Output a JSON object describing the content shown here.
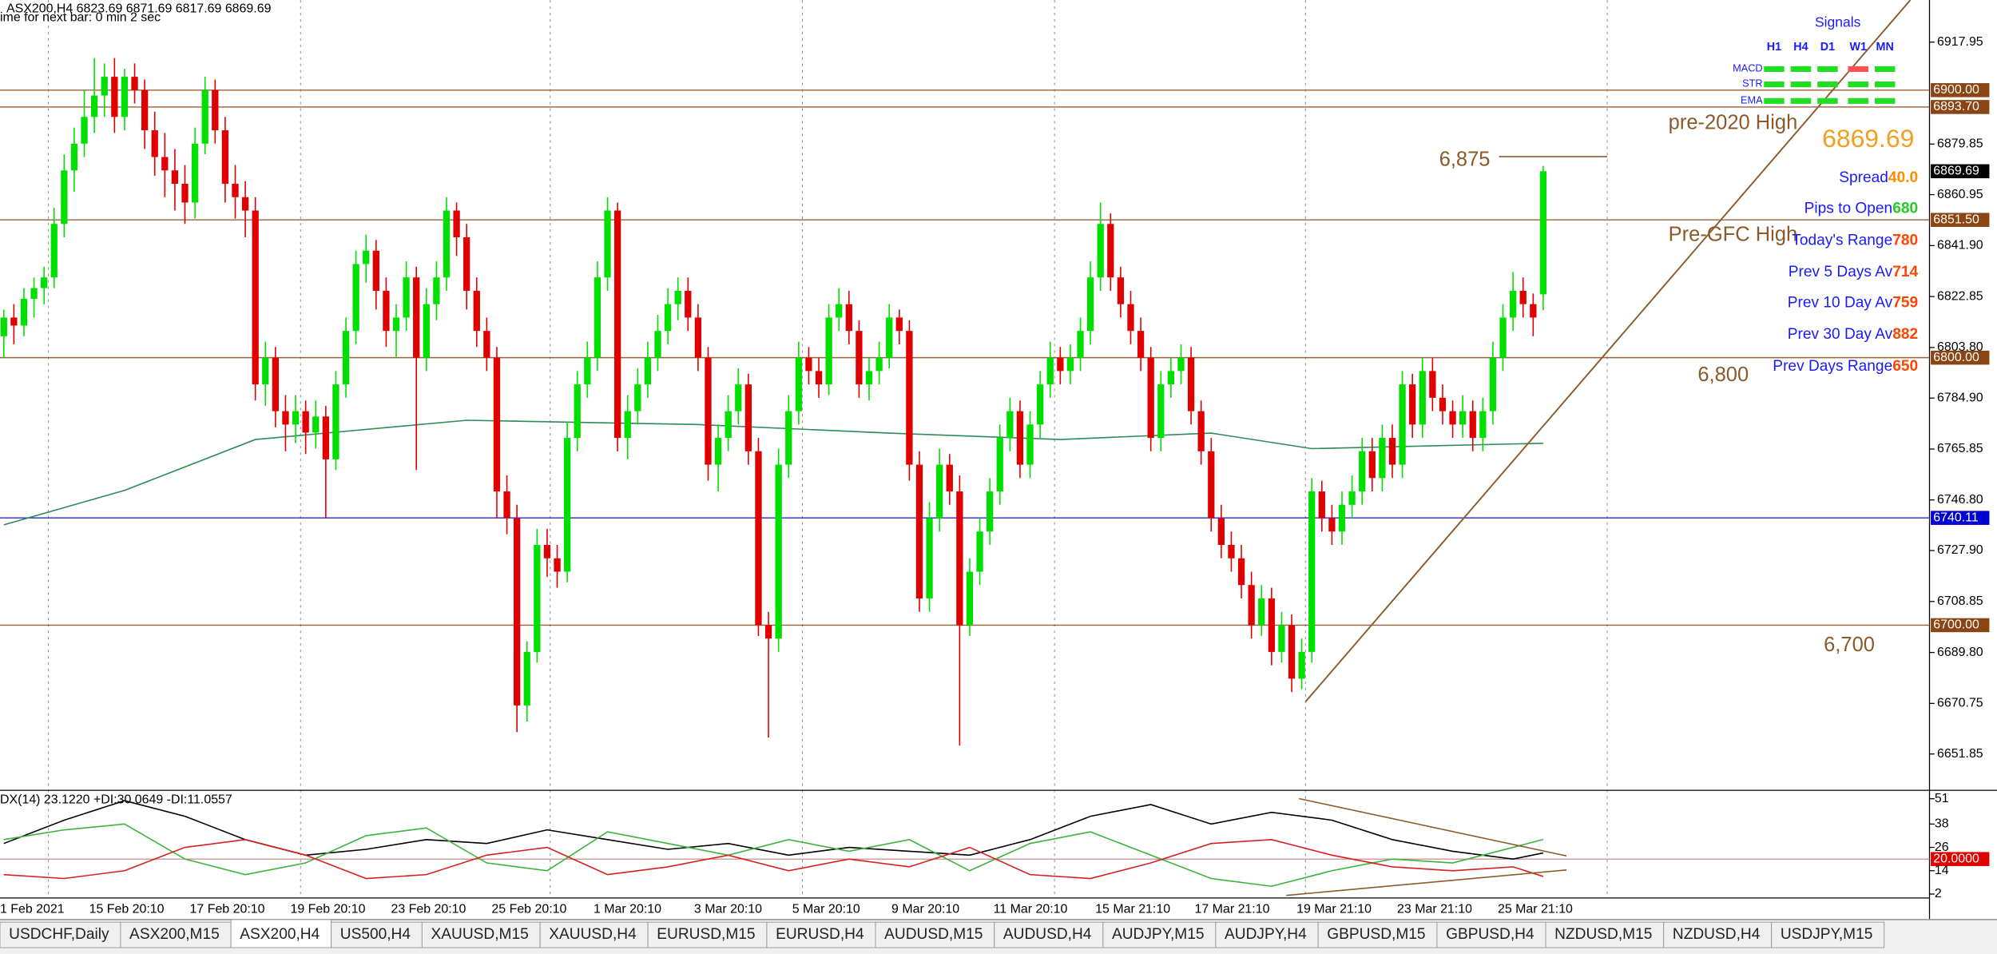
{
  "chart_data": {
    "type": "candlestick",
    "title": "ASX200,H4  6823.69 6871.69 6817.69 6869.69",
    "subtitle": "ime for next bar: 0 min 2 sec",
    "up_color": "#00e000",
    "down_color": "#e00000",
    "ylim": [
      6638.5,
      6933.7
    ],
    "yticks": [
      6917.95,
      6879.85,
      6860.95,
      {
        "value": 6841.9,
        "label": "6841.90"
      },
      6822.85,
      {
        "value": 6803.8,
        "label": "6803.80"
      },
      {
        "value": 6784.9,
        "label": "6784.90"
      },
      6765.85,
      {
        "value": 6746.8,
        "label": "6746.80"
      },
      {
        "value": 6727.9,
        "label": "6727.90"
      },
      6708.85,
      {
        "value": 6689.8,
        "label": "6689.80"
      },
      6670.75,
      6651.85
    ],
    "levels": [
      {
        "value": 6900,
        "label": "6900.00",
        "color": "#8b4513"
      },
      {
        "value": 6893.7,
        "label": "6893.70",
        "color": "#8b4513"
      },
      {
        "value": 6851.5,
        "label": "6851.50",
        "color": "#8b4513"
      },
      {
        "value": 6800,
        "label": "6800.00",
        "color": "#8b4513"
      },
      {
        "value": 6700,
        "label": "6700.00",
        "color": "#8b4513"
      },
      {
        "value": 6740.11,
        "label": "6740.11",
        "color": "#0000d0"
      }
    ],
    "last_price": {
      "value": 6869.69,
      "label": "6869.69",
      "color": "#000000"
    },
    "dates": [
      "1 Feb 2021",
      "15 Feb 20:10",
      "17 Feb 20:10",
      "19 Feb 20:10",
      "23 Feb 20:10",
      "25 Feb 20:10",
      "1 Mar 20:10",
      "3 Mar 20:10",
      "5 Mar 20:10",
      "9 Mar 20:10",
      "11 Mar 20:10",
      "15 Mar 21:10",
      "17 Mar 21:10",
      "19 Mar 21:10",
      "23 Mar 21:10",
      "25 Mar 21:10"
    ],
    "annotations": [
      "pre-2020 High",
      "Pre-GFC High",
      "6,875",
      "6,800",
      "6,700"
    ],
    "candles": [
      [
        6808,
        6818,
        6800,
        6815
      ],
      [
        6815,
        6820,
        6805,
        6812
      ],
      [
        6812,
        6826,
        6808,
        6822
      ],
      [
        6822,
        6830,
        6815,
        6826
      ],
      [
        6826,
        6834,
        6820,
        6830
      ],
      [
        6830,
        6856,
        6826,
        6850
      ],
      [
        6850,
        6876,
        6845,
        6870
      ],
      [
        6870,
        6886,
        6862,
        6880
      ],
      [
        6880,
        6900,
        6875,
        6890
      ],
      [
        6890,
        6912,
        6884,
        6898
      ],
      [
        6898,
        6910,
        6890,
        6905
      ],
      [
        6905,
        6912,
        6884,
        6890
      ],
      [
        6890,
        6908,
        6885,
        6905
      ],
      [
        6905,
        6910,
        6895,
        6900
      ],
      [
        6900,
        6904,
        6878,
        6885
      ],
      [
        6885,
        6892,
        6868,
        6875
      ],
      [
        6875,
        6884,
        6860,
        6870
      ],
      [
        6870,
        6878,
        6855,
        6865
      ],
      [
        6865,
        6872,
        6850,
        6858
      ],
      [
        6858,
        6886,
        6852,
        6880
      ],
      [
        6880,
        6905,
        6876,
        6900
      ],
      [
        6900,
        6904,
        6880,
        6885
      ],
      [
        6885,
        6890,
        6858,
        6865
      ],
      [
        6865,
        6872,
        6852,
        6860
      ],
      [
        6860,
        6866,
        6845,
        6855
      ],
      [
        6855,
        6860,
        6784,
        6790
      ],
      [
        6790,
        6806,
        6782,
        6800
      ],
      [
        6800,
        6804,
        6774,
        6780
      ],
      [
        6780,
        6786,
        6765,
        6775
      ],
      [
        6775,
        6786,
        6768,
        6780
      ],
      [
        6780,
        6784,
        6764,
        6772
      ],
      [
        6772,
        6784,
        6766,
        6778
      ],
      [
        6778,
        6782,
        6740,
        6762
      ],
      [
        6762,
        6795,
        6758,
        6790
      ],
      [
        6790,
        6815,
        6785,
        6810
      ],
      [
        6810,
        6840,
        6805,
        6835
      ],
      [
        6835,
        6846,
        6828,
        6840
      ],
      [
        6840,
        6844,
        6818,
        6825
      ],
      [
        6825,
        6830,
        6804,
        6810
      ],
      [
        6810,
        6820,
        6800,
        6815
      ],
      [
        6815,
        6836,
        6810,
        6830
      ],
      [
        6830,
        6834,
        6758,
        6800
      ],
      [
        6800,
        6826,
        6795,
        6820
      ],
      [
        6820,
        6836,
        6814,
        6830
      ],
      [
        6830,
        6860,
        6825,
        6855
      ],
      [
        6855,
        6858,
        6838,
        6845
      ],
      [
        6845,
        6850,
        6818,
        6825
      ],
      [
        6825,
        6830,
        6804,
        6810
      ],
      [
        6810,
        6815,
        6795,
        6800
      ],
      [
        6800,
        6804,
        6740,
        6750
      ],
      [
        6750,
        6756,
        6734,
        6740
      ],
      [
        6740,
        6745,
        6660,
        6670
      ],
      [
        6670,
        6694,
        6664,
        6690
      ],
      [
        6690,
        6736,
        6686,
        6730
      ],
      [
        6730,
        6736,
        6718,
        6725
      ],
      [
        6725,
        6730,
        6714,
        6720
      ],
      [
        6720,
        6776,
        6716,
        6770
      ],
      [
        6770,
        6795,
        6765,
        6790
      ],
      [
        6790,
        6806,
        6785,
        6800
      ],
      [
        6800,
        6836,
        6795,
        6830
      ],
      [
        6830,
        6860,
        6825,
        6855
      ],
      [
        6855,
        6858,
        6765,
        6770
      ],
      [
        6770,
        6786,
        6762,
        6780
      ],
      [
        6780,
        6796,
        6775,
        6790
      ],
      [
        6790,
        6806,
        6785,
        6800
      ],
      [
        6800,
        6816,
        6795,
        6810
      ],
      [
        6810,
        6826,
        6805,
        6820
      ],
      [
        6820,
        6830,
        6814,
        6825
      ],
      [
        6825,
        6830,
        6810,
        6815
      ],
      [
        6815,
        6820,
        6795,
        6800
      ],
      [
        6800,
        6804,
        6754,
        6760
      ],
      [
        6760,
        6775,
        6750,
        6770
      ],
      [
        6770,
        6786,
        6765,
        6780
      ],
      [
        6780,
        6796,
        6775,
        6790
      ],
      [
        6790,
        6794,
        6760,
        6765
      ],
      [
        6765,
        6770,
        6696,
        6700
      ],
      [
        6700,
        6705,
        6658,
        6695
      ],
      [
        6695,
        6766,
        6690,
        6760
      ],
      [
        6760,
        6786,
        6755,
        6780
      ],
      [
        6780,
        6806,
        6775,
        6800
      ],
      [
        6800,
        6804,
        6790,
        6795
      ],
      [
        6795,
        6800,
        6785,
        6790
      ],
      [
        6790,
        6820,
        6786,
        6815
      ],
      [
        6815,
        6826,
        6810,
        6820
      ],
      [
        6820,
        6825,
        6805,
        6810
      ],
      [
        6810,
        6814,
        6785,
        6790
      ],
      [
        6790,
        6800,
        6784,
        6795
      ],
      [
        6795,
        6806,
        6790,
        6800
      ],
      [
        6800,
        6820,
        6796,
        6815
      ],
      [
        6815,
        6818,
        6805,
        6810
      ],
      [
        6810,
        6814,
        6754,
        6760
      ],
      [
        6760,
        6765,
        6705,
        6710
      ],
      [
        6710,
        6746,
        6705,
        6740
      ],
      [
        6740,
        6766,
        6735,
        6760
      ],
      [
        6760,
        6764,
        6745,
        6750
      ],
      [
        6750,
        6756,
        6655,
        6700
      ],
      [
        6700,
        6725,
        6696,
        6720
      ],
      [
        6720,
        6740,
        6715,
        6735
      ],
      [
        6735,
        6755,
        6730,
        6750
      ],
      [
        6750,
        6775,
        6745,
        6770
      ],
      [
        6770,
        6785,
        6765,
        6780
      ],
      [
        6780,
        6784,
        6755,
        6760
      ],
      [
        6760,
        6780,
        6755,
        6775
      ],
      [
        6775,
        6795,
        6770,
        6790
      ],
      [
        6790,
        6806,
        6785,
        6800
      ],
      [
        6800,
        6804,
        6790,
        6795
      ],
      [
        6795,
        6805,
        6790,
        6800
      ],
      [
        6800,
        6815,
        6795,
        6810
      ],
      [
        6810,
        6836,
        6805,
        6830
      ],
      [
        6830,
        6858,
        6825,
        6850
      ],
      [
        6850,
        6854,
        6825,
        6830
      ],
      [
        6830,
        6834,
        6815,
        6820
      ],
      [
        6820,
        6825,
        6805,
        6810
      ],
      [
        6810,
        6815,
        6795,
        6800
      ],
      [
        6800,
        6804,
        6765,
        6770
      ],
      [
        6770,
        6795,
        6765,
        6790
      ],
      [
        6790,
        6800,
        6785,
        6795
      ],
      [
        6795,
        6805,
        6790,
        6800
      ],
      [
        6800,
        6804,
        6775,
        6780
      ],
      [
        6780,
        6784,
        6760,
        6765
      ],
      [
        6765,
        6770,
        6735,
        6740
      ],
      [
        6740,
        6745,
        6725,
        6730
      ],
      [
        6730,
        6735,
        6720,
        6725
      ],
      [
        6725,
        6730,
        6710,
        6715
      ],
      [
        6715,
        6720,
        6695,
        6700
      ],
      [
        6700,
        6715,
        6696,
        6710
      ],
      [
        6710,
        6714,
        6685,
        6690
      ],
      [
        6690,
        6705,
        6686,
        6700
      ],
      [
        6700,
        6704,
        6675,
        6680
      ],
      [
        6680,
        6695,
        6676,
        6690
      ],
      [
        6690,
        6755,
        6686,
        6750
      ],
      [
        6750,
        6754,
        6735,
        6740
      ],
      [
        6740,
        6745,
        6730,
        6735
      ],
      [
        6735,
        6750,
        6730,
        6745
      ],
      [
        6745,
        6756,
        6740,
        6750
      ],
      [
        6750,
        6770,
        6745,
        6765
      ],
      [
        6765,
        6770,
        6750,
        6755
      ],
      [
        6755,
        6775,
        6750,
        6770
      ],
      [
        6770,
        6775,
        6755,
        6760
      ],
      [
        6760,
        6795,
        6755,
        6790
      ],
      [
        6790,
        6794,
        6770,
        6775
      ],
      [
        6775,
        6800,
        6770,
        6795
      ],
      [
        6795,
        6800,
        6780,
        6785
      ],
      [
        6785,
        6790,
        6775,
        6780
      ],
      [
        6780,
        6784,
        6770,
        6775
      ],
      [
        6775,
        6786,
        6770,
        6780
      ],
      [
        6780,
        6784,
        6765,
        6770
      ],
      [
        6770,
        6785,
        6765,
        6780
      ],
      [
        6780,
        6806,
        6775,
        6800
      ],
      [
        6800,
        6820,
        6795,
        6815
      ],
      [
        6815,
        6832,
        6810,
        6825
      ],
      [
        6825,
        6830,
        6815,
        6820
      ],
      [
        6820,
        6824,
        6808,
        6815
      ],
      [
        6823.69,
        6871.69,
        6817.69,
        6869.69
      ]
    ],
    "ma": {
      "color": "#2e8b57",
      "x": [
        0,
        12,
        25,
        46,
        69,
        88,
        105,
        120,
        130,
        153
      ],
      "values": [
        6737.5,
        6750.4,
        6769.4,
        6776.6,
        6775,
        6771.8,
        6769.4,
        6771.8,
        6766,
        6768
      ]
    },
    "adx": {
      "title": "DX(14) 23.1220 +DI:30.0649 -DI:11.0557",
      "ylim": [
        0,
        55
      ],
      "yticks": [
        51,
        38,
        26,
        {
          "value": 20,
          "label": "20.0000"
        },
        14,
        2
      ],
      "x": [
        0,
        6,
        12,
        18,
        24,
        30,
        36,
        42,
        48,
        54,
        60,
        66,
        72,
        78,
        84,
        90,
        96,
        102,
        108,
        114,
        120,
        126,
        132,
        138,
        144,
        150,
        153
      ],
      "series": [
        {
          "color": "#000000",
          "values": [
            28,
            40,
            50,
            42,
            30,
            22,
            25,
            30,
            28,
            35,
            30,
            25,
            28,
            22,
            26,
            24,
            22,
            30,
            42,
            48,
            38,
            44,
            40,
            30,
            24,
            20,
            23.122
          ]
        },
        {
          "color": "#3cb33c",
          "values": [
            30,
            35,
            38,
            20,
            12,
            18,
            32,
            36,
            18,
            14,
            34,
            28,
            22,
            30,
            24,
            30,
            14,
            28,
            34,
            22,
            10,
            6,
            14,
            20,
            18,
            26,
            30.0649
          ]
        },
        {
          "color": "#d62020",
          "values": [
            12,
            10,
            14,
            26,
            30,
            22,
            10,
            12,
            22,
            26,
            12,
            16,
            22,
            14,
            20,
            16,
            26,
            12,
            10,
            18,
            28,
            30,
            22,
            16,
            14,
            16,
            11.0557
          ]
        }
      ]
    }
  },
  "signals": {
    "title": "Signals",
    "columns": [
      "H1",
      "H4",
      "D1",
      "W1",
      "MN"
    ],
    "rows": [
      {
        "name": "MACD",
        "colors": [
          "#22dd22",
          "#22dd22",
          "#22dd22",
          "#ff5050",
          "#22dd22"
        ]
      },
      {
        "name": "STR",
        "colors": [
          "#22dd22",
          "#22dd22",
          "#22dd22",
          "#22dd22",
          "#22dd22"
        ]
      },
      {
        "name": "EMA",
        "colors": [
          "#22dd22",
          "#22dd22",
          "#22dd22",
          "#22dd22",
          "#22dd22"
        ]
      }
    ]
  },
  "stats": {
    "price": "6869.69",
    "rows": [
      {
        "label": "Spread",
        "value": "40.0",
        "color": "#ff8c00"
      },
      {
        "label": "Pips to Open",
        "value": "680",
        "color": "#22cc22"
      },
      {
        "label": "Today's Range",
        "value": "780",
        "color": "#ff4500"
      },
      {
        "label": "Prev 5 Days Av",
        "value": "714",
        "color": "#ff4500"
      },
      {
        "label": "Prev 10 Day Av",
        "value": "759",
        "color": "#ff4500"
      },
      {
        "label": "Prev 30 Day Av",
        "value": "882",
        "color": "#ff4500"
      },
      {
        "label": "Prev Days Range",
        "value": "650",
        "color": "#ff4500"
      }
    ]
  },
  "tabs": [
    "USDCHF,Daily",
    "ASX200,M15",
    "ASX200,H4",
    "US500,H4",
    "XAUUSD,M15",
    "XAUUSD,H4",
    "EURUSD,M15",
    "EURUSD,H4",
    "AUDUSD,M15",
    "AUDUSD,H4",
    "AUDJPY,M15",
    "AUDJPY,H4",
    "GBPUSD,M15",
    "GBPUSD,H4",
    "NZDUSD,M15",
    "NZDUSD,H4",
    "USDJPY,M15"
  ],
  "active_tab": 2
}
